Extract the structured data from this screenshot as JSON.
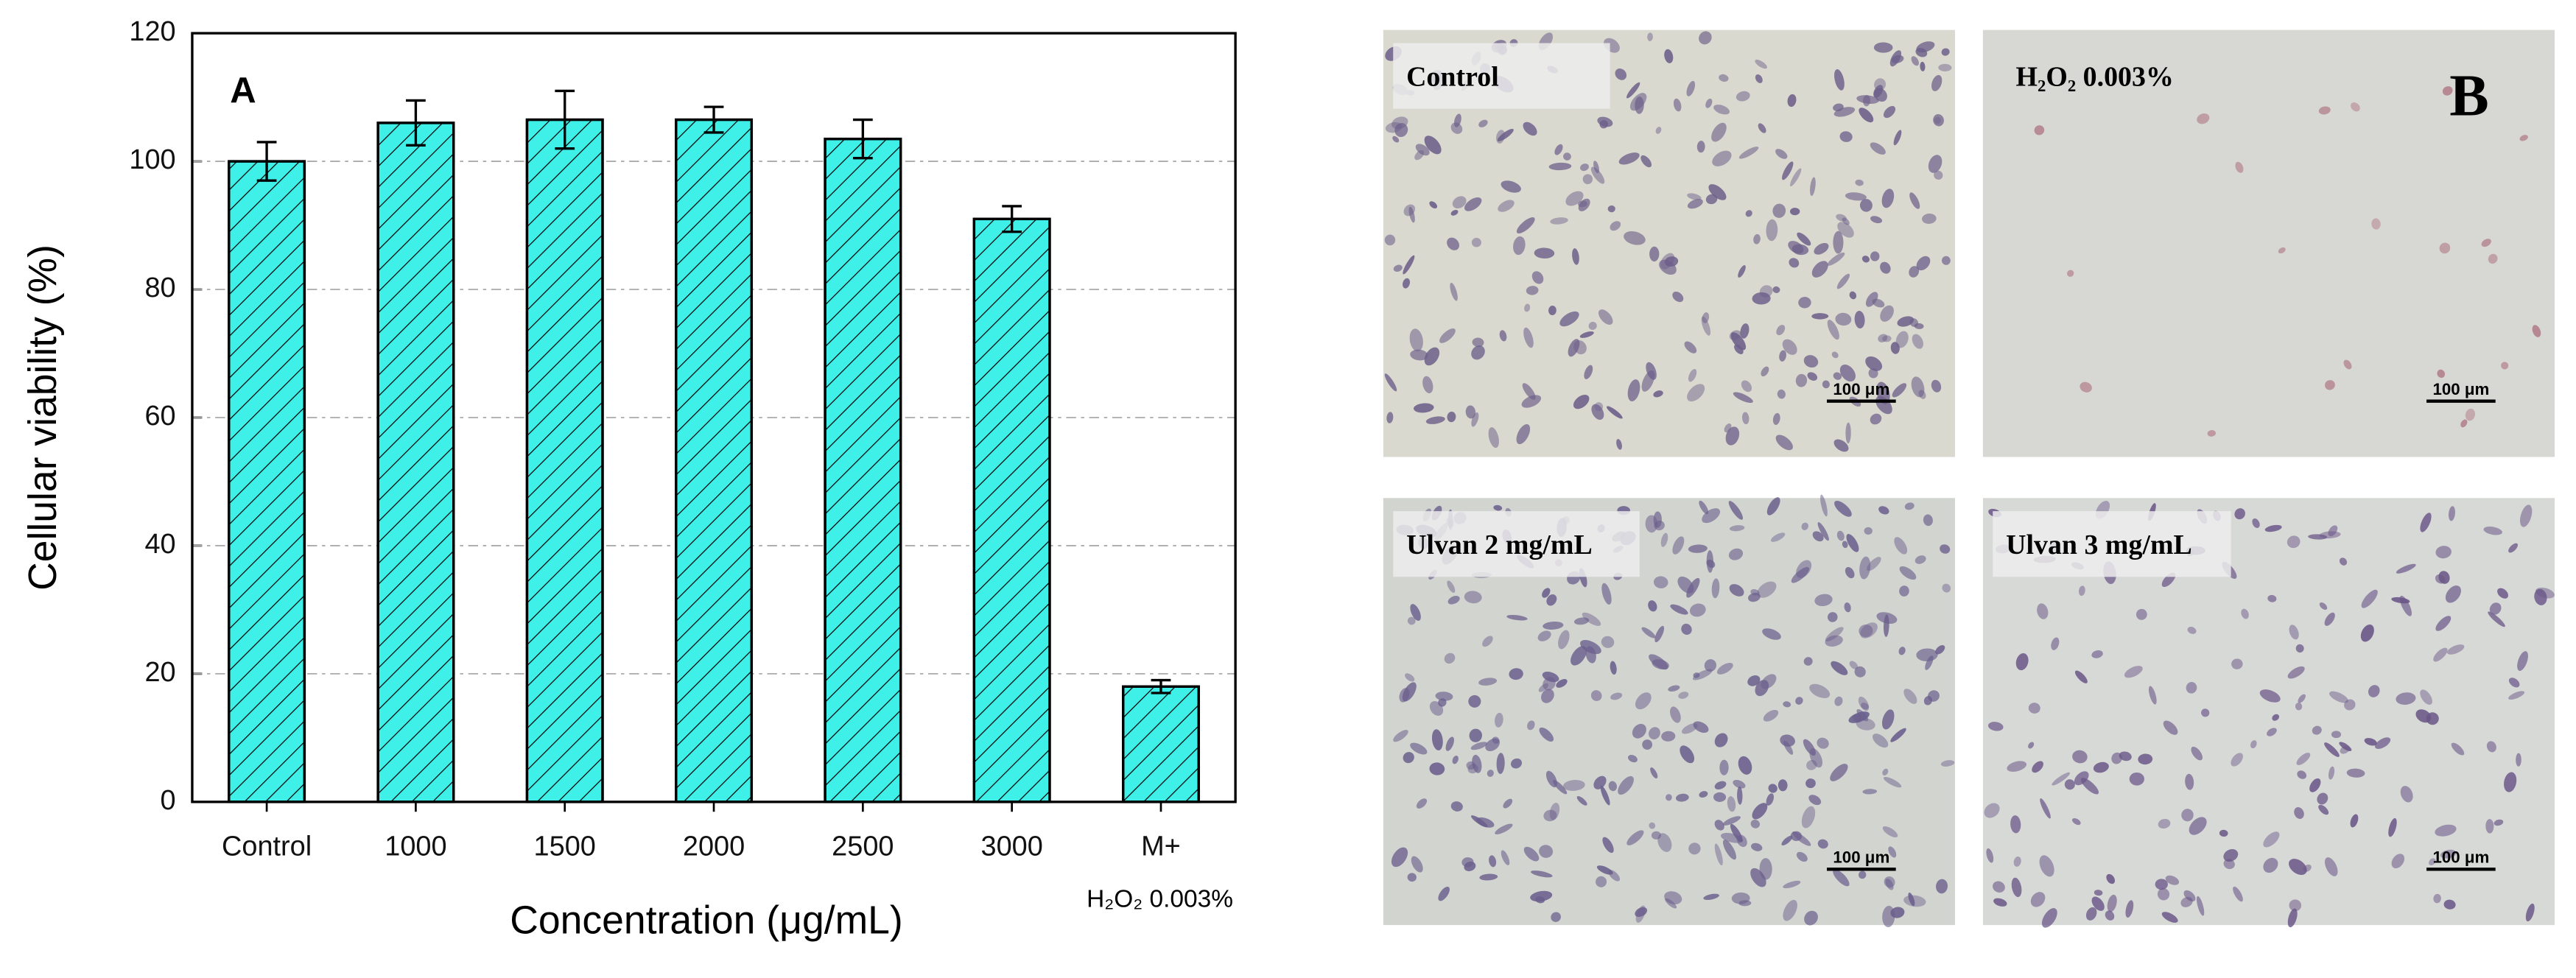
{
  "chart_data": {
    "type": "bar",
    "panel_label": "A",
    "xlabel": "Concentration (μg/mL)",
    "ylabel": "Cellular viability (%)",
    "categories": [
      "Control",
      "1000",
      "1500",
      "2000",
      "2500",
      "3000",
      "M+"
    ],
    "category_note": "H₂O₂ 0.003%",
    "values": [
      100,
      106,
      106.5,
      106.5,
      103.5,
      91,
      18
    ],
    "errors": [
      3,
      3.5,
      4.5,
      2,
      3,
      2,
      1
    ],
    "color": "#3ff0e8",
    "hatch": true,
    "ylim": [
      0,
      120
    ],
    "yticks": [
      0,
      20,
      40,
      60,
      80,
      100,
      120
    ],
    "grid": true
  },
  "panel_b": {
    "label": "B",
    "images": [
      {
        "label": "Control",
        "scale_bar": "100 μm"
      },
      {
        "label": "H₂O₂ 0.003%",
        "scale_bar": "100 μm"
      },
      {
        "label": "Ulvan 2 mg/mL",
        "scale_bar": "100 μm"
      },
      {
        "label": "Ulvan 3 mg/mL",
        "scale_bar": "100 μm"
      }
    ]
  }
}
